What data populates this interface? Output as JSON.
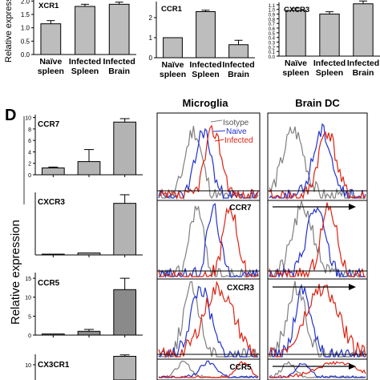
{
  "panel_letter": "D",
  "top_row": {
    "ylabel": "Relative expression",
    "xticks": [
      [
        "Naïve",
        "spleen"
      ],
      [
        "Infected",
        "Spleen"
      ],
      [
        "Infected",
        "Brain"
      ]
    ]
  },
  "left_ylabel": "Relative expression",
  "flow": {
    "col_titles": [
      "Microglia",
      "Brain DC"
    ],
    "legend": [
      "Isotype",
      "Naive",
      "Infected"
    ],
    "xlabels": [
      "CCR7",
      "CXCR3",
      "CCR5"
    ],
    "colors": {
      "isotype": "#7f7f7f",
      "naive": "#2233cc",
      "infected": "#dd2211"
    }
  },
  "chart_data": [
    {
      "type": "bar",
      "title": "XCR1",
      "categories": [
        "Naïve spleen",
        "Infected Spleen",
        "Infected Brain"
      ],
      "values": [
        1.15,
        1.8,
        1.88
      ],
      "errors": [
        0.12,
        0.08,
        0.08
      ],
      "yticks": [
        "0.0",
        "0.5",
        "1.0",
        "1.5",
        "2.0"
      ],
      "ylim": [
        0,
        2.1
      ]
    },
    {
      "type": "bar",
      "title": "CCR1",
      "categories": [
        "Naïve spleen",
        "Infected Spleen",
        "Infected Brain"
      ],
      "values": [
        1.0,
        2.3,
        0.65
      ],
      "errors": [
        0,
        0.07,
        0.22
      ],
      "yticks": [
        "0",
        "1",
        "2"
      ],
      "ylim": [
        0,
        2.8
      ]
    },
    {
      "type": "bar",
      "title": "CXCR3",
      "categories": [
        "Naïve spleen",
        "Infected Spleen",
        "Infected Brain"
      ],
      "values": [
        0.98,
        0.9,
        1.12
      ],
      "errors": [
        0.05,
        0.05,
        0.06
      ],
      "yticks": [
        "0.0",
        "0.1",
        "0.2",
        "0.3",
        "0.4",
        "0.5",
        "0.6",
        "0.7",
        "0.8",
        "0.9",
        "1.0",
        "1.1"
      ],
      "ylim": [
        0,
        1.15
      ]
    },
    {
      "type": "bar",
      "title": "CCR7",
      "values": [
        1.2,
        2.3,
        9.2
      ],
      "errors": [
        0.15,
        2.1,
        0.6
      ],
      "yticks": [
        "0",
        "2",
        "4",
        "6",
        "8",
        "10"
      ],
      "ylim": [
        0,
        10.5
      ]
    },
    {
      "type": "bar",
      "title": "CXCR3",
      "values": [
        0.1,
        0.25,
        6.6
      ],
      "errors": [
        0,
        0,
        1.1
      ],
      "yticks": [],
      "ylim": [
        0,
        8
      ]
    },
    {
      "type": "bar",
      "title": "CCR5",
      "values": [
        0.3,
        1.0,
        12
      ],
      "errors": [
        0,
        0.5,
        3
      ],
      "yticks": [
        "0",
        "5",
        "10",
        "15"
      ],
      "ylim": [
        0,
        16.5
      ]
    },
    {
      "type": "bar",
      "title": "CX3CR1",
      "values": [
        0,
        0,
        13
      ],
      "errors": [
        0,
        0,
        0.5
      ],
      "yticks": [
        "10"
      ],
      "ylim": [
        0,
        13.7
      ]
    }
  ]
}
